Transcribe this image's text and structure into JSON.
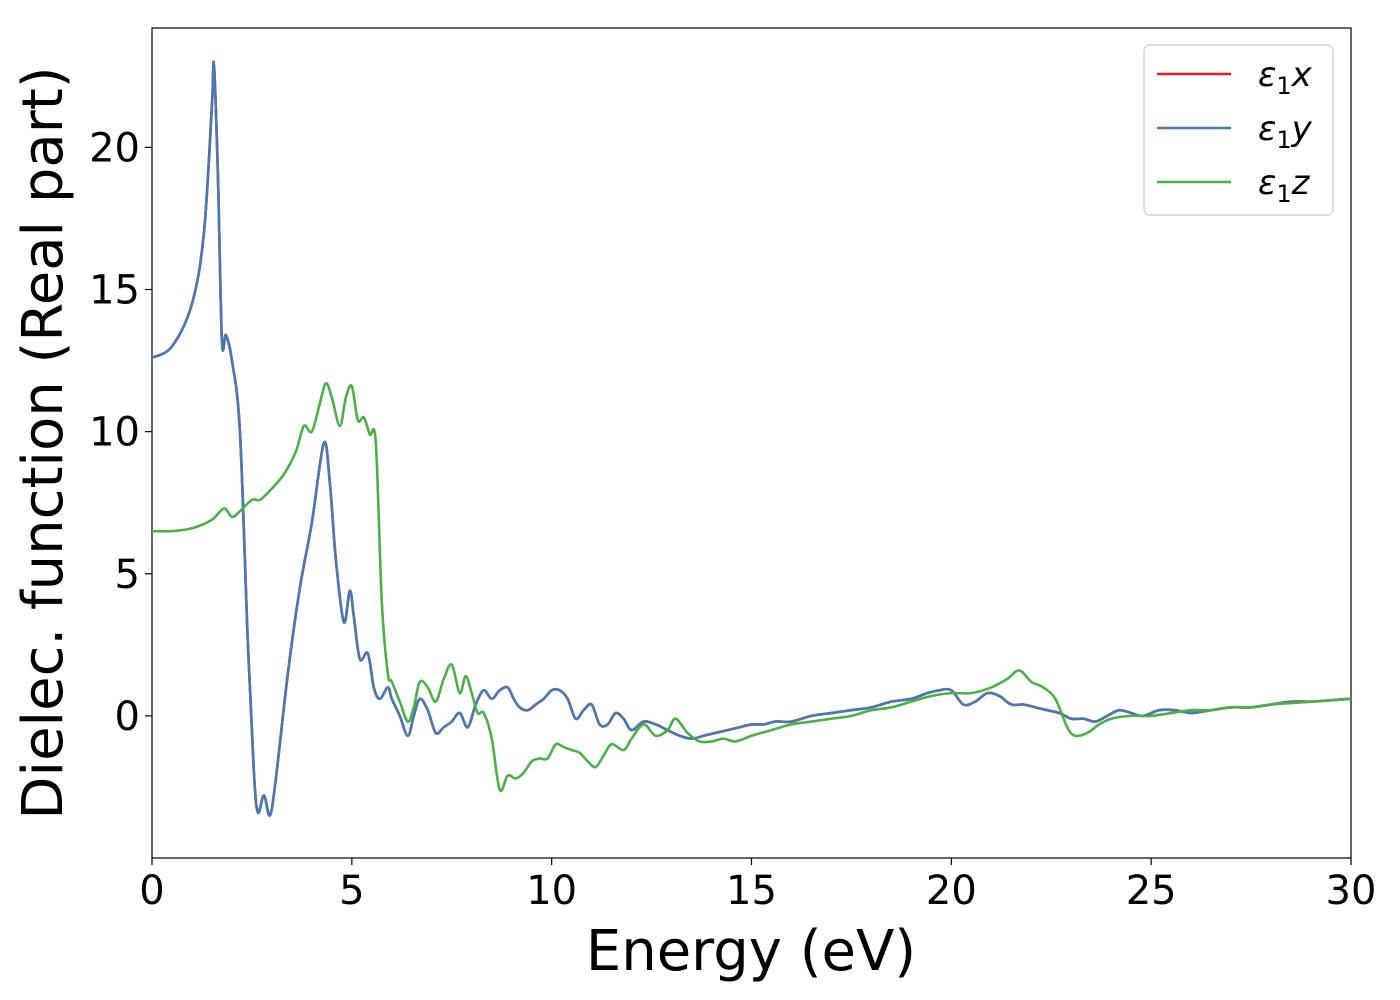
{
  "chart_data": {
    "type": "line",
    "title": "",
    "xlabel": "Energy (eV)",
    "ylabel": "Dielec. function (Real part)",
    "xlim": [
      0,
      30
    ],
    "ylim": [
      -5,
      24.2
    ],
    "xticks": [
      0,
      5,
      10,
      15,
      20,
      25,
      30
    ],
    "xtick_labels": [
      "0",
      "5",
      "10",
      "15",
      "20",
      "25",
      "30"
    ],
    "yticks": [
      0,
      5,
      10,
      15,
      20
    ],
    "ytick_labels": [
      "0",
      "5",
      "10",
      "15",
      "20"
    ],
    "grid": false,
    "legend_position": "top-right",
    "series": [
      {
        "name": "ε₁x",
        "legend_main": "ε",
        "legend_sub": "1",
        "legend_tail": "x",
        "color": "#e41a1c",
        "x": [
          0,
          0.5,
          1.0,
          1.3,
          1.5,
          1.55,
          1.65,
          1.75,
          1.85,
          2.0,
          2.2,
          2.4,
          2.55,
          2.65,
          2.8,
          2.95,
          3.1,
          3.4,
          3.7,
          4.0,
          4.3,
          4.45,
          4.6,
          4.8,
          4.95,
          5.05,
          5.2,
          5.4,
          5.55,
          5.7,
          5.9,
          6.0,
          6.2,
          6.4,
          6.55,
          6.7,
          6.9,
          7.1,
          7.3,
          7.5,
          7.7,
          7.9,
          8.1,
          8.3,
          8.5,
          8.7,
          8.9,
          9.05,
          9.2,
          9.4,
          9.6,
          9.8,
          10.0,
          10.2,
          10.4,
          10.6,
          10.8,
          11.0,
          11.2,
          11.4,
          11.6,
          11.8,
          12.0,
          12.3,
          12.6,
          12.9,
          13.2,
          13.5,
          13.8,
          14.1,
          14.4,
          14.7,
          15.0,
          15.3,
          15.6,
          16.0,
          16.5,
          17.0,
          17.5,
          18.0,
          18.5,
          19.0,
          19.4,
          19.7,
          20.0,
          20.3,
          20.6,
          20.9,
          21.2,
          21.5,
          21.8,
          22.1,
          22.4,
          22.7,
          23.0,
          23.3,
          23.6,
          23.9,
          24.2,
          24.5,
          24.8,
          25.2,
          25.6,
          26.0,
          26.5,
          27.0,
          27.5,
          28.0,
          28.5,
          29.0,
          29.5,
          30.0
        ],
        "values": [
          12.6,
          13.0,
          14.5,
          17.0,
          21.5,
          22.9,
          19.0,
          13.2,
          13.4,
          12.5,
          10.0,
          2.5,
          -2.0,
          -3.4,
          -2.8,
          -3.5,
          -2.2,
          1.5,
          4.5,
          6.8,
          9.6,
          8.2,
          5.5,
          3.3,
          4.4,
          3.5,
          2.0,
          2.2,
          1.0,
          0.6,
          1.0,
          0.6,
          0.0,
          -0.7,
          0.0,
          0.6,
          0.2,
          -0.6,
          -0.4,
          -0.2,
          0.1,
          -0.4,
          0.4,
          0.9,
          0.6,
          0.9,
          1.0,
          0.6,
          0.3,
          0.2,
          0.4,
          0.6,
          0.9,
          0.9,
          0.6,
          -0.1,
          0.2,
          0.4,
          -0.3,
          -0.3,
          0.1,
          -0.1,
          -0.5,
          -0.2,
          -0.3,
          -0.5,
          -0.7,
          -0.8,
          -0.7,
          -0.6,
          -0.5,
          -0.4,
          -0.3,
          -0.3,
          -0.2,
          -0.2,
          0.0,
          0.1,
          0.2,
          0.3,
          0.5,
          0.6,
          0.8,
          0.9,
          0.9,
          0.4,
          0.5,
          0.8,
          0.7,
          0.4,
          0.4,
          0.3,
          0.2,
          0.1,
          -0.1,
          -0.1,
          -0.2,
          0.0,
          0.2,
          0.1,
          0.0,
          0.2,
          0.2,
          0.1,
          0.2,
          0.3,
          0.3,
          0.4,
          0.5,
          0.5,
          0.55,
          0.6
        ]
      },
      {
        "name": "ε₁y",
        "legend_main": "ε",
        "legend_sub": "1",
        "legend_tail": "y",
        "color": "#4a79b0",
        "x": [
          0,
          0.5,
          1.0,
          1.3,
          1.5,
          1.55,
          1.65,
          1.75,
          1.85,
          2.0,
          2.2,
          2.4,
          2.55,
          2.65,
          2.8,
          2.95,
          3.1,
          3.4,
          3.7,
          4.0,
          4.3,
          4.45,
          4.6,
          4.8,
          4.95,
          5.05,
          5.2,
          5.4,
          5.55,
          5.7,
          5.9,
          6.0,
          6.2,
          6.4,
          6.55,
          6.7,
          6.9,
          7.1,
          7.3,
          7.5,
          7.7,
          7.9,
          8.1,
          8.3,
          8.5,
          8.7,
          8.9,
          9.05,
          9.2,
          9.4,
          9.6,
          9.8,
          10.0,
          10.2,
          10.4,
          10.6,
          10.8,
          11.0,
          11.2,
          11.4,
          11.6,
          11.8,
          12.0,
          12.3,
          12.6,
          12.9,
          13.2,
          13.5,
          13.8,
          14.1,
          14.4,
          14.7,
          15.0,
          15.3,
          15.6,
          16.0,
          16.5,
          17.0,
          17.5,
          18.0,
          18.5,
          19.0,
          19.4,
          19.7,
          20.0,
          20.3,
          20.6,
          20.9,
          21.2,
          21.5,
          21.8,
          22.1,
          22.4,
          22.7,
          23.0,
          23.3,
          23.6,
          23.9,
          24.2,
          24.5,
          24.8,
          25.2,
          25.6,
          26.0,
          26.5,
          27.0,
          27.5,
          28.0,
          28.5,
          29.0,
          29.5,
          30.0
        ],
        "values": [
          12.6,
          13.0,
          14.5,
          17.0,
          21.5,
          22.9,
          19.0,
          13.2,
          13.4,
          12.5,
          10.0,
          2.5,
          -2.0,
          -3.4,
          -2.8,
          -3.5,
          -2.2,
          1.5,
          4.5,
          6.8,
          9.6,
          8.2,
          5.5,
          3.3,
          4.4,
          3.5,
          2.0,
          2.2,
          1.0,
          0.6,
          1.0,
          0.6,
          0.0,
          -0.7,
          0.0,
          0.6,
          0.2,
          -0.6,
          -0.4,
          -0.2,
          0.1,
          -0.4,
          0.4,
          0.9,
          0.6,
          0.9,
          1.0,
          0.6,
          0.3,
          0.2,
          0.4,
          0.6,
          0.9,
          0.9,
          0.6,
          -0.1,
          0.2,
          0.4,
          -0.3,
          -0.3,
          0.1,
          -0.1,
          -0.5,
          -0.2,
          -0.3,
          -0.5,
          -0.7,
          -0.8,
          -0.7,
          -0.6,
          -0.5,
          -0.4,
          -0.3,
          -0.3,
          -0.2,
          -0.2,
          0.0,
          0.1,
          0.2,
          0.3,
          0.5,
          0.6,
          0.8,
          0.9,
          0.9,
          0.4,
          0.5,
          0.8,
          0.7,
          0.4,
          0.4,
          0.3,
          0.2,
          0.1,
          -0.1,
          -0.1,
          -0.2,
          0.0,
          0.2,
          0.1,
          0.0,
          0.2,
          0.2,
          0.1,
          0.2,
          0.3,
          0.3,
          0.4,
          0.5,
          0.5,
          0.55,
          0.6
        ]
      },
      {
        "name": "ε₁z",
        "legend_main": "ε",
        "legend_sub": "1",
        "legend_tail": "z",
        "color": "#4daf4a",
        "x": [
          0,
          0.5,
          1.0,
          1.5,
          1.8,
          2.0,
          2.2,
          2.5,
          2.7,
          3.0,
          3.3,
          3.6,
          3.8,
          4.0,
          4.2,
          4.35,
          4.5,
          4.7,
          4.85,
          5.0,
          5.15,
          5.3,
          5.45,
          5.6,
          5.75,
          5.9,
          6.0,
          6.2,
          6.4,
          6.55,
          6.7,
          6.9,
          7.1,
          7.3,
          7.5,
          7.7,
          7.85,
          8.0,
          8.15,
          8.3,
          8.5,
          8.7,
          8.9,
          9.1,
          9.3,
          9.5,
          9.7,
          9.9,
          10.1,
          10.3,
          10.5,
          10.7,
          10.9,
          11.1,
          11.3,
          11.5,
          11.8,
          12.0,
          12.3,
          12.6,
          12.9,
          13.1,
          13.4,
          13.7,
          14.0,
          14.3,
          14.6,
          15.0,
          15.5,
          16.0,
          16.5,
          17.0,
          17.5,
          18.0,
          18.5,
          19.0,
          19.5,
          20.0,
          20.5,
          21.0,
          21.4,
          21.7,
          22.0,
          22.3,
          22.6,
          22.9,
          23.1,
          23.4,
          23.7,
          24.0,
          24.5,
          25.0,
          25.5,
          26.0,
          26.5,
          27.0,
          27.5,
          28.0,
          28.5,
          29.0,
          29.5,
          30.0
        ],
        "values": [
          6.5,
          6.5,
          6.6,
          6.9,
          7.3,
          7.0,
          7.2,
          7.6,
          7.6,
          8.0,
          8.5,
          9.3,
          10.2,
          10.0,
          11.0,
          11.7,
          11.2,
          10.2,
          11.2,
          11.6,
          10.4,
          10.5,
          9.9,
          9.6,
          4.0,
          1.5,
          1.2,
          0.5,
          -0.2,
          0.3,
          1.2,
          1.0,
          0.5,
          1.3,
          1.8,
          0.8,
          1.4,
          0.8,
          0.1,
          0.1,
          -0.8,
          -2.6,
          -2.1,
          -2.2,
          -2.0,
          -1.6,
          -1.5,
          -1.5,
          -1.0,
          -1.1,
          -1.2,
          -1.3,
          -1.6,
          -1.8,
          -1.4,
          -1.0,
          -1.2,
          -0.8,
          -0.3,
          -0.7,
          -0.5,
          -0.1,
          -0.6,
          -0.9,
          -0.9,
          -0.8,
          -0.9,
          -0.7,
          -0.5,
          -0.3,
          -0.2,
          -0.1,
          0.0,
          0.2,
          0.3,
          0.5,
          0.7,
          0.8,
          0.8,
          1.0,
          1.3,
          1.6,
          1.2,
          1.0,
          0.6,
          -0.4,
          -0.7,
          -0.6,
          -0.3,
          -0.1,
          0.0,
          0.0,
          0.1,
          0.2,
          0.2,
          0.3,
          0.3,
          0.4,
          0.45,
          0.5,
          0.55,
          0.6
        ]
      }
    ]
  }
}
